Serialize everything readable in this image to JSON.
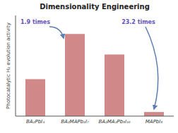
{
  "chart_data": {
    "type": "bar",
    "title": "Dimensionality Engineering",
    "ylabel": "Photocatalytic H₂ evolution activity",
    "categories": [
      "BA₂PbI₄",
      "BA₂MAPb₂I₇",
      "BA₂MA₂Pb₃I₁₀",
      "MAPbI₃"
    ],
    "values": [
      0.36,
      0.8,
      0.6,
      0.04
    ],
    "color": "#d08888",
    "ylim": [
      0,
      0.98
    ],
    "tick_labels": "x",
    "annotations": [
      "1.9 times",
      "23.2 times"
    ]
  }
}
